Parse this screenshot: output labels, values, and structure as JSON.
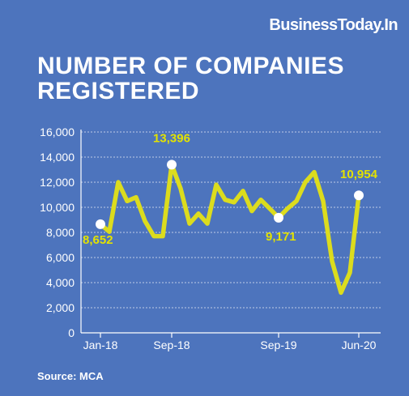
{
  "brand": "BusinessToday.In",
  "title": "NUMBER OF COMPANIES REGISTERED",
  "source": "Source: MCA",
  "colors": {
    "background": "#4d74bd",
    "line": "#dcdc1e",
    "label": "#e3e200",
    "marker": "#ffffff"
  },
  "chart_data": {
    "type": "line",
    "title": "NUMBER OF COMPANIES REGISTERED",
    "xlabel": "",
    "ylabel": "",
    "ylim": [
      0,
      16000
    ],
    "yticks": [
      0,
      2000,
      4000,
      6000,
      8000,
      10000,
      12000,
      14000,
      16000
    ],
    "ytick_labels": [
      "0",
      "2,000",
      "4,000",
      "6,000",
      "8,000",
      "10,000",
      "12,000",
      "14,000",
      "16,000"
    ],
    "x_tick_labels": [
      {
        "index": 0,
        "label": "Jan-18"
      },
      {
        "index": 8,
        "label": "Sep-18"
      },
      {
        "index": 20,
        "label": "Sep-19"
      },
      {
        "index": 29,
        "label": "Jun-20"
      }
    ],
    "grid": true,
    "categories": [
      "Jan-18",
      "Feb-18",
      "Mar-18",
      "Apr-18",
      "May-18",
      "Jun-18",
      "Jul-18",
      "Aug-18",
      "Sep-18",
      "Oct-18",
      "Nov-18",
      "Dec-18",
      "Jan-19",
      "Feb-19",
      "Mar-19",
      "Apr-19",
      "May-19",
      "Jun-19",
      "Jul-19",
      "Aug-19",
      "Sep-19",
      "Oct-19",
      "Nov-19",
      "Dec-19",
      "Jan-20",
      "Feb-20",
      "Mar-20",
      "Apr-20",
      "May-20",
      "Jun-20"
    ],
    "series": [
      {
        "values": [
          8652,
          8050,
          12000,
          10500,
          10800,
          8900,
          7700,
          7700,
          13396,
          11500,
          8700,
          9500,
          8700,
          11800,
          10600,
          10400,
          11300,
          9700,
          10600,
          9900,
          9171,
          9900,
          10500,
          12000,
          12800,
          10500,
          5700,
          3200,
          4800,
          10954
        ]
      }
    ],
    "annotations": [
      {
        "index": 0,
        "value": 8652,
        "label": "8,652"
      },
      {
        "index": 8,
        "value": 13396,
        "label": "13,396"
      },
      {
        "index": 20,
        "value": 9171,
        "label": "9,171"
      },
      {
        "index": 29,
        "value": 10954,
        "label": "10,954"
      }
    ]
  }
}
